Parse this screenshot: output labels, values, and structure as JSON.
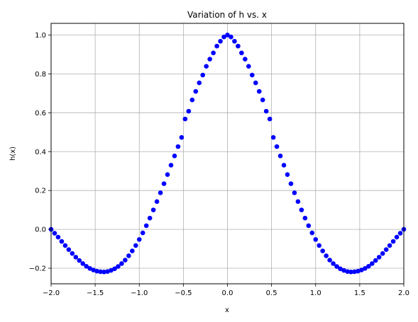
{
  "chart_data": {
    "type": "scatter",
    "title": "Variation of h vs. x",
    "xlabel": "x",
    "ylabel": "h(x)",
    "xlim": [
      -2.0,
      2.0
    ],
    "ylim": [
      -0.28,
      1.06
    ],
    "xticks": [
      -2.0,
      -1.5,
      -1.0,
      -0.5,
      0.0,
      0.5,
      1.0,
      1.5,
      2.0
    ],
    "xtick_labels": [
      "−2.0",
      "−1.5",
      "−1.0",
      "−0.5",
      "0.0",
      "0.5",
      "1.0",
      "1.5",
      "2.0"
    ],
    "yticks": [
      -0.2,
      0.0,
      0.2,
      0.4,
      0.6,
      0.8,
      1.0
    ],
    "ytick_labels": [
      "−0.2",
      "0.0",
      "0.2",
      "0.4",
      "0.6",
      "0.8",
      "1.0"
    ],
    "grid": true,
    "legend": "none",
    "series": [
      {
        "color": "#0000ff",
        "x": [
          -2.0,
          -1.96,
          -1.92,
          -1.88,
          -1.84,
          -1.8,
          -1.76,
          -1.72,
          -1.68,
          -1.64,
          -1.6,
          -1.56,
          -1.52,
          -1.48,
          -1.44,
          -1.4,
          -1.36,
          -1.32,
          -1.28,
          -1.24,
          -1.2,
          -1.16,
          -1.12,
          -1.08,
          -1.04,
          -1.0,
          -0.96,
          -0.92,
          -0.88,
          -0.84,
          -0.8,
          -0.76,
          -0.72,
          -0.68,
          -0.64,
          -0.6,
          -0.56,
          -0.52,
          -0.48,
          -0.44,
          -0.4,
          -0.36,
          -0.32,
          -0.28,
          -0.24,
          -0.2,
          -0.16,
          -0.12,
          -0.08,
          -0.04,
          0.0,
          0.04,
          0.08,
          0.12,
          0.16,
          0.2,
          0.24,
          0.28,
          0.32,
          0.36,
          0.4,
          0.44,
          0.48,
          0.52,
          0.56,
          0.6,
          0.64,
          0.68,
          0.72,
          0.76,
          0.8,
          0.84,
          0.88,
          0.92,
          0.96,
          1.0,
          1.04,
          1.08,
          1.12,
          1.16,
          1.2,
          1.24,
          1.28,
          1.32,
          1.36,
          1.4,
          1.44,
          1.48,
          1.52,
          1.56,
          1.6,
          1.64,
          1.68,
          1.72,
          1.76,
          1.8,
          1.84,
          1.88,
          1.92,
          1.96,
          2.0
        ],
        "y": [
          0.0,
          -0.02,
          -0.04,
          -0.062,
          -0.083,
          -0.104,
          -0.124,
          -0.143,
          -0.16,
          -0.176,
          -0.19,
          -0.201,
          -0.209,
          -0.215,
          -0.218,
          -0.219,
          -0.217,
          -0.211,
          -0.203,
          -0.191,
          -0.176,
          -0.158,
          -0.136,
          -0.111,
          -0.083,
          -0.052,
          -0.018,
          0.019,
          0.058,
          0.1,
          0.143,
          0.188,
          0.235,
          0.282,
          0.33,
          0.378,
          0.426,
          0.473,
          0.568,
          0.608,
          0.666,
          0.71,
          0.754,
          0.794,
          0.839,
          0.876,
          0.908,
          0.943,
          0.968,
          0.99,
          1.0,
          0.99,
          0.968,
          0.943,
          0.908,
          0.876,
          0.839,
          0.794,
          0.754,
          0.71,
          0.666,
          0.608,
          0.568,
          0.473,
          0.426,
          0.378,
          0.33,
          0.282,
          0.235,
          0.188,
          0.143,
          0.1,
          0.058,
          0.019,
          -0.018,
          -0.052,
          -0.083,
          -0.111,
          -0.136,
          -0.158,
          -0.176,
          -0.191,
          -0.203,
          -0.211,
          -0.217,
          -0.219,
          -0.218,
          -0.215,
          -0.209,
          -0.201,
          -0.19,
          -0.176,
          -0.16,
          -0.143,
          -0.124,
          -0.104,
          -0.083,
          -0.062,
          -0.04,
          -0.02,
          0.0
        ]
      }
    ]
  }
}
